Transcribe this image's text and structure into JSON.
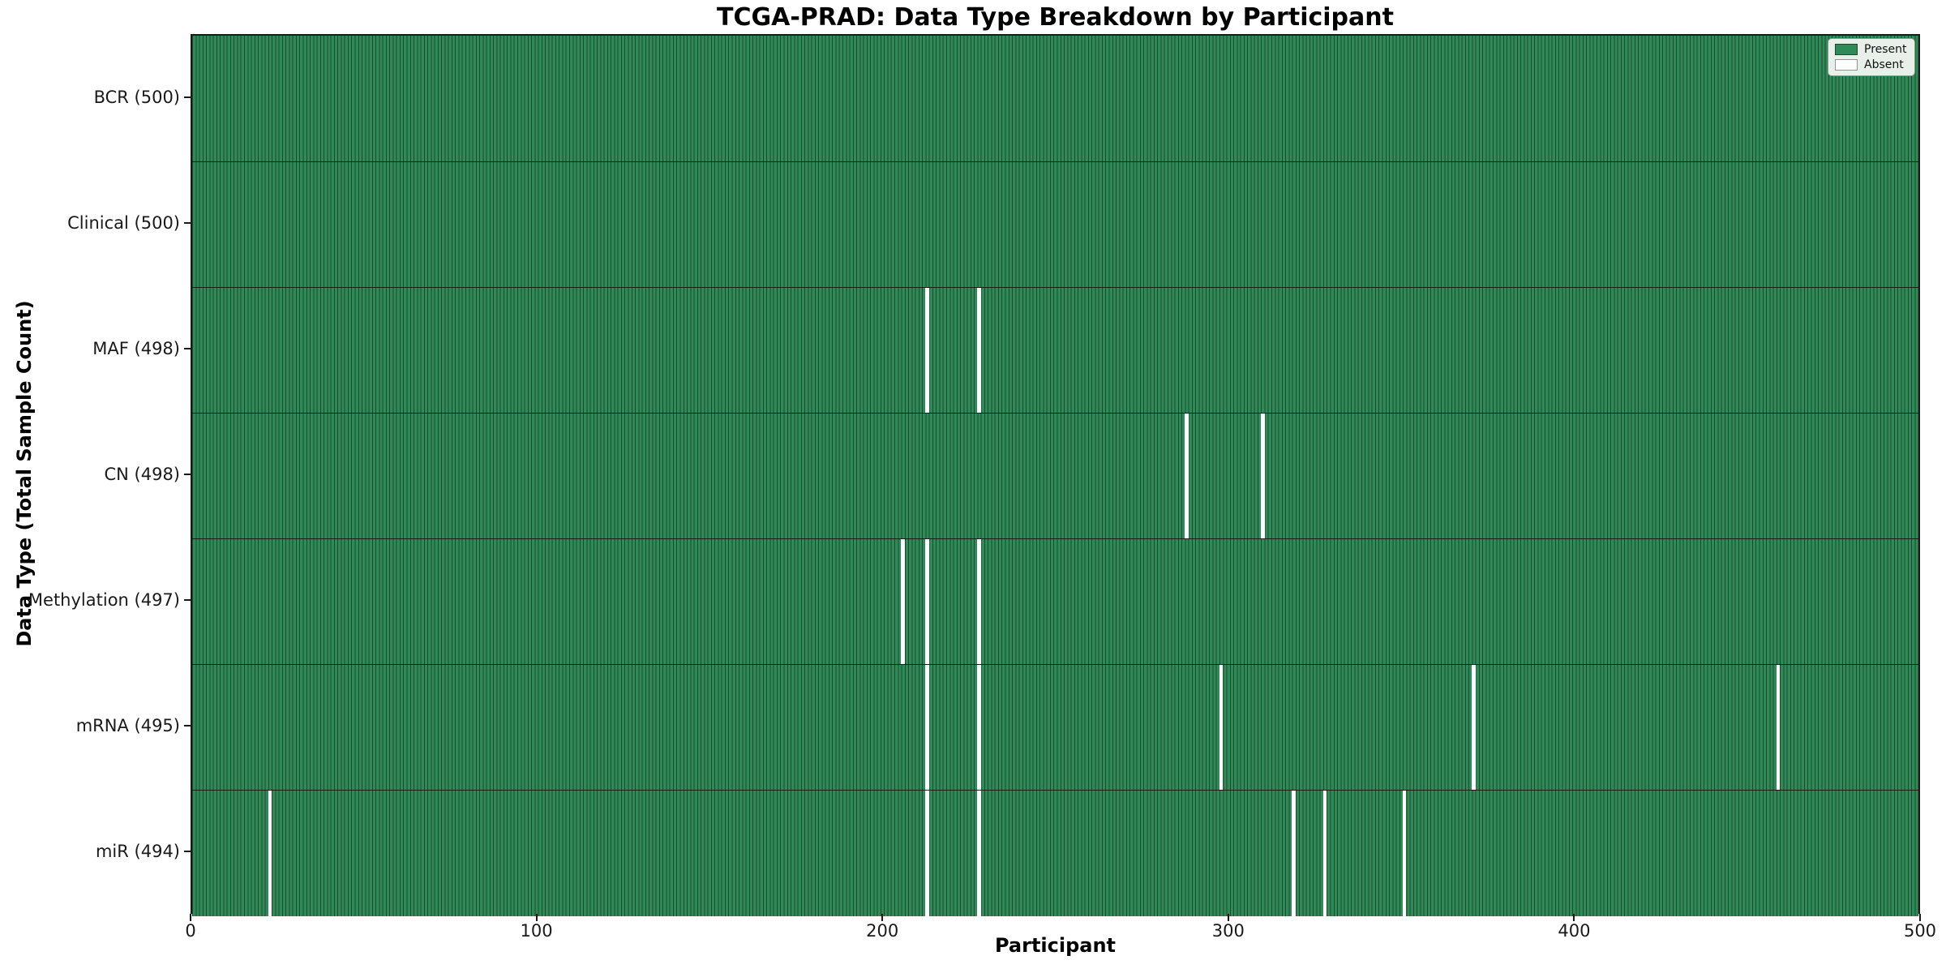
{
  "title": "TCGA-PRAD: Data Type Breakdown by Participant",
  "axis": {
    "x_label": "Participant",
    "y_label": "Data Type (Total Sample Count)"
  },
  "legend": {
    "items": [
      {
        "label": "Present",
        "color": "#2e8b57",
        "edge": "#20482f"
      },
      {
        "label": "Absent",
        "color": "#ffffff",
        "edge": "#8f998f"
      }
    ],
    "position": "upper right"
  },
  "colors": {
    "present_fill": "#2e8b57",
    "cell_edge": "#20482f",
    "absent_fill": "#ffffff",
    "spine": "#1a1a1a",
    "background": "#ffffff"
  },
  "chart_data": {
    "type": "heatmap",
    "title": "TCGA-PRAD: Data Type Breakdown by Participant",
    "xlabel": "Participant",
    "ylabel": "Data Type (Total Sample Count)",
    "xlim": [
      0,
      500
    ],
    "x_ticks": [
      0,
      100,
      200,
      300,
      400,
      500
    ],
    "n_participants": 500,
    "grid": false,
    "legend_entries": [
      "Present",
      "Absent"
    ],
    "legend_position": "upper right",
    "rows": [
      {
        "label": "BCR (500)",
        "data_type": "BCR",
        "total": 500,
        "absent_participants": []
      },
      {
        "label": "Clinical (500)",
        "data_type": "Clinical",
        "total": 500,
        "absent_participants": []
      },
      {
        "label": "MAF (498)",
        "data_type": "MAF",
        "total": 498,
        "absent_participants": [
          212,
          227
        ]
      },
      {
        "label": "CN (498)",
        "data_type": "CN",
        "total": 498,
        "absent_participants": [
          287,
          309
        ]
      },
      {
        "label": "Methylation (497)",
        "data_type": "Methylation",
        "total": 497,
        "absent_participants": [
          205,
          212,
          227
        ]
      },
      {
        "label": "mRNA (495)",
        "data_type": "mRNA",
        "total": 495,
        "absent_participants": [
          212,
          227,
          297,
          370,
          458
        ]
      },
      {
        "label": "miR (494)",
        "data_type": "miR",
        "total": 494,
        "absent_participants": [
          22,
          212,
          227,
          318,
          327,
          350
        ]
      }
    ]
  }
}
